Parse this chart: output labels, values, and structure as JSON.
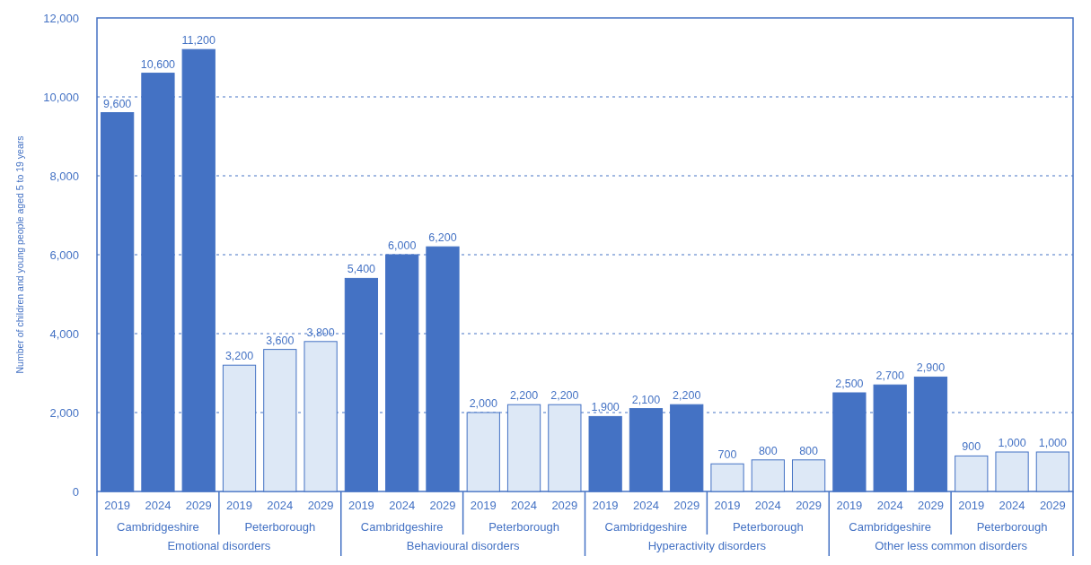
{
  "chart_data": {
    "type": "bar",
    "ylabel": "Number of children and young people aged 5 to 19 years",
    "categories": [
      "2019",
      "2024",
      "2029",
      "2019",
      "2024",
      "2029",
      "2019",
      "2024",
      "2029",
      "2019",
      "2024",
      "2029",
      "2019",
      "2024",
      "2029",
      "2019",
      "2024",
      "2029",
      "2019",
      "2024",
      "2029",
      "2019",
      "2024",
      "2029"
    ],
    "values": [
      9600,
      10600,
      11200,
      3200,
      3600,
      3800,
      5400,
      6000,
      6200,
      2000,
      2200,
      2200,
      1900,
      2100,
      2200,
      700,
      800,
      800,
      2500,
      2700,
      2900,
      900,
      1000,
      1000
    ],
    "colors": [
      "#4472c4",
      "#4472c4",
      "#4472c4",
      "#dde8f6",
      "#dde8f6",
      "#dde8f6",
      "#4472c4",
      "#4472c4",
      "#4472c4",
      "#dde8f6",
      "#dde8f6",
      "#dde8f6",
      "#4472c4",
      "#4472c4",
      "#4472c4",
      "#dde8f6",
      "#dde8f6",
      "#dde8f6",
      "#4472c4",
      "#4472c4",
      "#4472c4",
      "#dde8f6",
      "#dde8f6",
      "#dde8f6"
    ],
    "ylim": [
      0,
      12000
    ],
    "yticks": [
      0,
      {
        "value": 2000,
        "label": "2,000"
      },
      {
        "value": 4000,
        "label": "4,000"
      },
      {
        "value": 6000,
        "label": "6,000"
      },
      {
        "value": 8000,
        "label": "8,000"
      },
      {
        "value": 10000,
        "label": "10,000"
      },
      {
        "value": 12000,
        "label": "12,000"
      }
    ],
    "grid": "y",
    "value_labels": [
      "9,600",
      "10,600",
      "11,200",
      "3,200",
      "3,600",
      "3,800",
      "5,400",
      "6,000",
      "6,200",
      "2,000",
      "2,200",
      "2,200",
      "1,900",
      "2,100",
      "2,200",
      "700",
      "800",
      "800",
      "2,500",
      "2,700",
      "2,900",
      "900",
      "1,000",
      "1,000"
    ],
    "annotations": [
      "Cambridgeshire",
      "Peterborough",
      "Cambridgeshire",
      "Peterborough",
      "Cambridgeshire",
      "Peterborough",
      "Cambridgeshire",
      "Peterborough",
      "Emotional disorders",
      "Behavioural disorders",
      "Hyperactivity disorders",
      "Other less common disorders"
    ]
  }
}
